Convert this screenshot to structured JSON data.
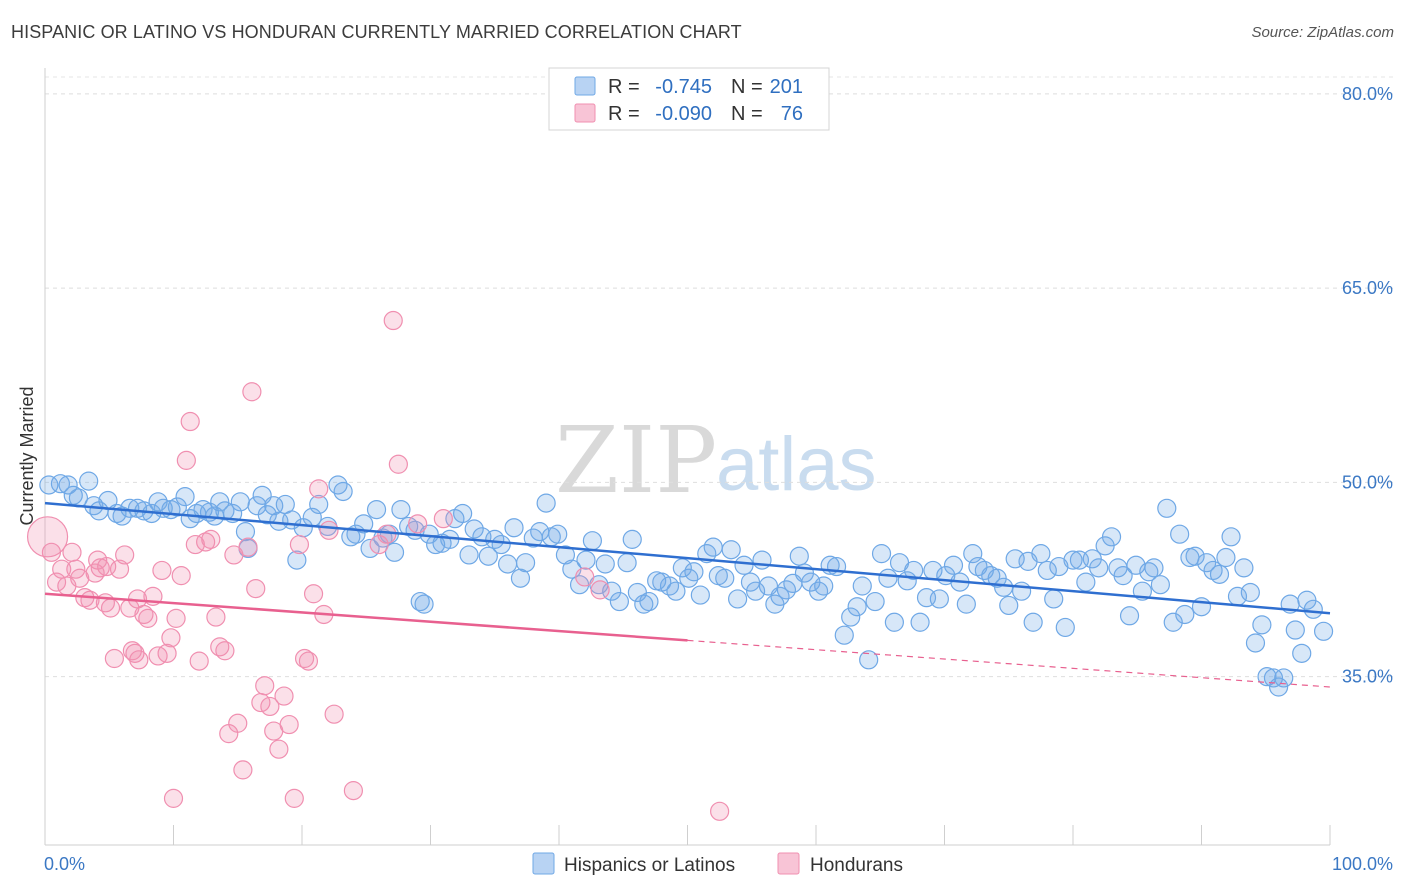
{
  "title": "HISPANIC OR LATINO VS HONDURAN CURRENTLY MARRIED CORRELATION CHART",
  "source": "Source: ZipAtlas.com",
  "watermark": {
    "zip": "ZIP",
    "atlas": "atlas"
  },
  "legend": {
    "rows": [
      {
        "r_label": "R =",
        "r_value": "-0.745",
        "n_label": "N =",
        "n_value": "201",
        "color": "#6fa8e6"
      },
      {
        "r_label": "R =",
        "r_value": "-0.090",
        "n_label": "N =",
        "n_value": "76",
        "color": "#f08fb0"
      }
    ]
  },
  "bottom_legend": [
    "Hispanics or Latinos",
    "Hondurans"
  ],
  "chart_data": {
    "type": "scatter",
    "title": "HISPANIC OR LATINO VS HONDURAN CURRENTLY MARRIED CORRELATION CHART",
    "xlabel": "",
    "ylabel": "Currently Married",
    "xlim": [
      0,
      100
    ],
    "ylim": [
      22,
      82
    ],
    "x_tick_labels": [
      "0.0%",
      "100.0%"
    ],
    "y_ticks": [
      35,
      50,
      65,
      80
    ],
    "y_tick_labels": [
      "35.0%",
      "50.0%",
      "65.0%",
      "80.0%"
    ],
    "grid": true,
    "legend_position": "top-center",
    "series": [
      {
        "name": "Hispanics or Latinos",
        "color": "#6fa8e6",
        "line_color": "#2f6fd0",
        "trend": {
          "x": [
            0,
            100
          ],
          "y": [
            48.4,
            39.9
          ]
        },
        "points": [
          [
            0.3,
            49.8
          ],
          [
            1.2,
            49.9
          ],
          [
            1.8,
            49.8
          ],
          [
            2.2,
            49.0
          ],
          [
            2.6,
            48.8
          ],
          [
            3.4,
            50.1
          ],
          [
            3.8,
            48.2
          ],
          [
            4.2,
            47.8
          ],
          [
            4.9,
            48.6
          ],
          [
            5.6,
            47.6
          ],
          [
            6.0,
            47.4
          ],
          [
            6.6,
            48.0
          ],
          [
            7.2,
            48.0
          ],
          [
            7.7,
            47.8
          ],
          [
            8.3,
            47.6
          ],
          [
            8.8,
            48.5
          ],
          [
            9.2,
            48.0
          ],
          [
            9.8,
            47.9
          ],
          [
            10.3,
            48.1
          ],
          [
            10.9,
            48.9
          ],
          [
            11.3,
            47.2
          ],
          [
            11.8,
            47.6
          ],
          [
            12.3,
            47.9
          ],
          [
            12.8,
            47.7
          ],
          [
            13.2,
            47.4
          ],
          [
            13.6,
            48.5
          ],
          [
            14.0,
            47.8
          ],
          [
            14.6,
            47.6
          ],
          [
            15.2,
            48.5
          ],
          [
            15.6,
            46.2
          ],
          [
            15.8,
            44.9
          ],
          [
            16.5,
            48.2
          ],
          [
            16.9,
            49.0
          ],
          [
            17.3,
            47.5
          ],
          [
            17.8,
            48.2
          ],
          [
            18.2,
            47.0
          ],
          [
            18.7,
            48.3
          ],
          [
            19.2,
            47.1
          ],
          [
            19.6,
            44.0
          ],
          [
            20.1,
            46.5
          ],
          [
            20.8,
            47.3
          ],
          [
            21.3,
            48.3
          ],
          [
            22.0,
            46.6
          ],
          [
            22.8,
            49.8
          ],
          [
            23.2,
            49.3
          ],
          [
            23.8,
            45.8
          ],
          [
            24.2,
            46.0
          ],
          [
            24.8,
            46.8
          ],
          [
            25.3,
            44.9
          ],
          [
            25.8,
            47.9
          ],
          [
            26.3,
            45.7
          ],
          [
            26.8,
            46.0
          ],
          [
            27.2,
            44.6
          ],
          [
            27.7,
            47.9
          ],
          [
            28.3,
            46.6
          ],
          [
            28.8,
            46.3
          ],
          [
            29.2,
            40.8
          ],
          [
            29.5,
            40.6
          ],
          [
            29.9,
            46.0
          ],
          [
            30.4,
            45.2
          ],
          [
            30.9,
            45.3
          ],
          [
            31.5,
            45.6
          ],
          [
            31.9,
            47.2
          ],
          [
            32.5,
            47.6
          ],
          [
            33.0,
            44.4
          ],
          [
            33.4,
            46.4
          ],
          [
            34.0,
            45.8
          ],
          [
            34.5,
            44.3
          ],
          [
            35.0,
            45.6
          ],
          [
            35.5,
            45.2
          ],
          [
            36.0,
            43.7
          ],
          [
            36.5,
            46.5
          ],
          [
            37.0,
            42.6
          ],
          [
            37.4,
            43.8
          ],
          [
            38.0,
            45.7
          ],
          [
            38.5,
            46.2
          ],
          [
            39.0,
            48.4
          ],
          [
            39.4,
            45.8
          ],
          [
            39.9,
            46.0
          ],
          [
            40.5,
            44.4
          ],
          [
            41.0,
            43.3
          ],
          [
            41.6,
            42.1
          ],
          [
            42.1,
            44.0
          ],
          [
            42.6,
            45.5
          ],
          [
            43.1,
            42.1
          ],
          [
            43.6,
            43.7
          ],
          [
            44.1,
            41.6
          ],
          [
            44.7,
            40.8
          ],
          [
            45.3,
            43.8
          ],
          [
            45.7,
            45.6
          ],
          [
            46.1,
            41.5
          ],
          [
            46.6,
            40.6
          ],
          [
            47.0,
            40.8
          ],
          [
            47.6,
            42.4
          ],
          [
            48.0,
            42.3
          ],
          [
            48.6,
            42.0
          ],
          [
            49.1,
            41.6
          ],
          [
            49.6,
            43.4
          ],
          [
            50.1,
            42.6
          ],
          [
            50.5,
            43.1
          ],
          [
            51.0,
            41.3
          ],
          [
            51.5,
            44.5
          ],
          [
            52.0,
            45.0
          ],
          [
            52.4,
            42.8
          ],
          [
            52.9,
            42.6
          ],
          [
            53.4,
            44.8
          ],
          [
            53.9,
            41.0
          ],
          [
            54.4,
            43.6
          ],
          [
            54.9,
            42.3
          ],
          [
            55.3,
            41.6
          ],
          [
            55.8,
            44.0
          ],
          [
            56.3,
            42.0
          ],
          [
            56.8,
            40.6
          ],
          [
            57.2,
            41.2
          ],
          [
            57.7,
            41.7
          ],
          [
            58.2,
            42.2
          ],
          [
            58.7,
            44.3
          ],
          [
            59.1,
            43.0
          ],
          [
            59.6,
            42.3
          ],
          [
            60.2,
            41.6
          ],
          [
            60.6,
            42.0
          ],
          [
            61.1,
            43.6
          ],
          [
            61.6,
            43.5
          ],
          [
            62.2,
            38.2
          ],
          [
            62.7,
            39.6
          ],
          [
            63.2,
            40.4
          ],
          [
            63.6,
            42.0
          ],
          [
            64.1,
            36.3
          ],
          [
            64.6,
            40.8
          ],
          [
            65.1,
            44.5
          ],
          [
            65.6,
            42.6
          ],
          [
            66.1,
            39.2
          ],
          [
            66.5,
            43.8
          ],
          [
            67.1,
            42.4
          ],
          [
            67.6,
            43.2
          ],
          [
            68.1,
            39.2
          ],
          [
            68.6,
            41.1
          ],
          [
            69.1,
            43.2
          ],
          [
            69.6,
            41.0
          ],
          [
            70.1,
            42.8
          ],
          [
            70.7,
            43.6
          ],
          [
            71.2,
            42.3
          ],
          [
            71.7,
            40.6
          ],
          [
            72.2,
            44.5
          ],
          [
            72.6,
            43.5
          ],
          [
            73.1,
            43.2
          ],
          [
            73.6,
            42.8
          ],
          [
            74.1,
            42.6
          ],
          [
            74.6,
            41.9
          ],
          [
            75.0,
            40.5
          ],
          [
            75.5,
            44.1
          ],
          [
            76.0,
            41.6
          ],
          [
            76.5,
            43.9
          ],
          [
            76.9,
            39.2
          ],
          [
            77.5,
            44.5
          ],
          [
            78.0,
            43.2
          ],
          [
            78.5,
            41.0
          ],
          [
            78.9,
            43.5
          ],
          [
            79.4,
            38.8
          ],
          [
            80.0,
            44.0
          ],
          [
            80.5,
            44.0
          ],
          [
            81.0,
            42.3
          ],
          [
            81.5,
            44.1
          ],
          [
            82.0,
            43.4
          ],
          [
            82.5,
            45.1
          ],
          [
            83.0,
            45.8
          ],
          [
            83.5,
            43.4
          ],
          [
            83.9,
            42.8
          ],
          [
            84.4,
            39.7
          ],
          [
            84.9,
            43.6
          ],
          [
            85.4,
            41.6
          ],
          [
            85.9,
            43.1
          ],
          [
            86.3,
            43.4
          ],
          [
            86.8,
            42.1
          ],
          [
            87.3,
            48.0
          ],
          [
            87.8,
            39.2
          ],
          [
            88.3,
            46.0
          ],
          [
            88.7,
            39.8
          ],
          [
            89.1,
            44.2
          ],
          [
            89.5,
            44.3
          ],
          [
            90.0,
            40.4
          ],
          [
            90.4,
            43.8
          ],
          [
            90.9,
            43.2
          ],
          [
            91.4,
            42.9
          ],
          [
            91.9,
            44.2
          ],
          [
            92.3,
            45.8
          ],
          [
            92.8,
            41.2
          ],
          [
            93.3,
            43.4
          ],
          [
            93.8,
            41.5
          ],
          [
            94.2,
            37.6
          ],
          [
            94.7,
            39.0
          ],
          [
            95.1,
            35.0
          ],
          [
            95.6,
            34.9
          ],
          [
            96.0,
            34.2
          ],
          [
            96.4,
            34.9
          ],
          [
            96.9,
            40.6
          ],
          [
            97.3,
            38.6
          ],
          [
            97.8,
            36.8
          ],
          [
            98.2,
            40.9
          ],
          [
            98.7,
            40.2
          ],
          [
            99.5,
            38.5
          ]
        ]
      },
      {
        "name": "Hondurans",
        "color": "#f08fb0",
        "line_color": "#e8608f",
        "trend": {
          "x": [
            0,
            100
          ],
          "y": [
            41.4,
            34.2
          ]
        },
        "trend_solid_until_x": 50,
        "points": [
          [
            0.2,
            45.8
          ],
          [
            0.5,
            44.6
          ],
          [
            0.9,
            42.3
          ],
          [
            1.3,
            43.3
          ],
          [
            1.7,
            42.0
          ],
          [
            2.1,
            44.6
          ],
          [
            2.4,
            43.3
          ],
          [
            2.7,
            42.6
          ],
          [
            3.1,
            41.1
          ],
          [
            3.5,
            40.9
          ],
          [
            3.9,
            43.0
          ],
          [
            4.1,
            44.0
          ],
          [
            4.3,
            43.4
          ],
          [
            4.7,
            40.7
          ],
          [
            5.1,
            40.3
          ],
          [
            5.4,
            36.4
          ],
          [
            5.8,
            43.3
          ],
          [
            6.2,
            44.4
          ],
          [
            6.6,
            40.3
          ],
          [
            7.0,
            36.8
          ],
          [
            7.3,
            36.3
          ],
          [
            7.7,
            39.8
          ],
          [
            8.0,
            39.5
          ],
          [
            8.4,
            41.2
          ],
          [
            8.8,
            36.6
          ],
          [
            9.1,
            43.2
          ],
          [
            9.5,
            36.8
          ],
          [
            9.8,
            38.0
          ],
          [
            10.2,
            39.5
          ],
          [
            10.6,
            42.8
          ],
          [
            11.0,
            51.7
          ],
          [
            11.3,
            54.7
          ],
          [
            11.7,
            45.2
          ],
          [
            12.0,
            36.2
          ],
          [
            12.5,
            45.4
          ],
          [
            12.9,
            45.6
          ],
          [
            13.3,
            39.6
          ],
          [
            13.6,
            37.3
          ],
          [
            14.0,
            37.0
          ],
          [
            14.3,
            30.6
          ],
          [
            14.7,
            44.4
          ],
          [
            15.0,
            31.4
          ],
          [
            15.4,
            27.8
          ],
          [
            15.8,
            45.0
          ],
          [
            16.1,
            57.0
          ],
          [
            16.4,
            41.8
          ],
          [
            16.8,
            33.0
          ],
          [
            17.1,
            34.3
          ],
          [
            17.5,
            32.7
          ],
          [
            17.8,
            30.8
          ],
          [
            18.2,
            29.4
          ],
          [
            18.6,
            33.5
          ],
          [
            19.0,
            31.3
          ],
          [
            19.4,
            25.6
          ],
          [
            19.8,
            45.2
          ],
          [
            20.2,
            36.4
          ],
          [
            20.5,
            36.2
          ],
          [
            20.9,
            41.4
          ],
          [
            21.3,
            49.5
          ],
          [
            21.7,
            39.8
          ],
          [
            22.1,
            46.3
          ],
          [
            22.5,
            32.1
          ],
          [
            24.0,
            26.2
          ],
          [
            26.0,
            45.2
          ],
          [
            26.6,
            46.0
          ],
          [
            27.1,
            62.5
          ],
          [
            27.5,
            51.4
          ],
          [
            29.0,
            46.8
          ],
          [
            31.0,
            47.2
          ],
          [
            42.0,
            42.7
          ],
          [
            43.2,
            41.7
          ],
          [
            52.5,
            24.6
          ],
          [
            10.0,
            25.6
          ],
          [
            7.2,
            41.0
          ],
          [
            4.8,
            43.5
          ],
          [
            6.8,
            37.0
          ]
        ]
      }
    ]
  }
}
